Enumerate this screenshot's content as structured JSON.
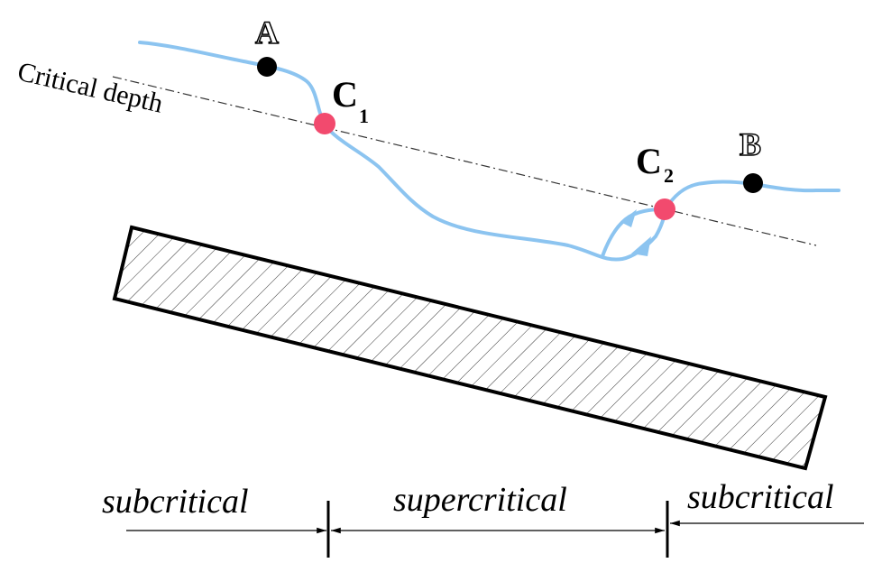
{
  "labels": {
    "critical_depth": "Critical depth",
    "point_a": "A",
    "point_b": "B",
    "c1_main": "C",
    "c1_sub": "1",
    "c2_main": "C",
    "c2_sub": "2"
  },
  "regions": {
    "left": "subcritical",
    "middle": "supercritical",
    "right": "subcritical"
  },
  "colors": {
    "water": "#8cc4f0",
    "critical_point": "#f24a6e",
    "end_point": "#000000",
    "hatch": "#000000"
  }
}
